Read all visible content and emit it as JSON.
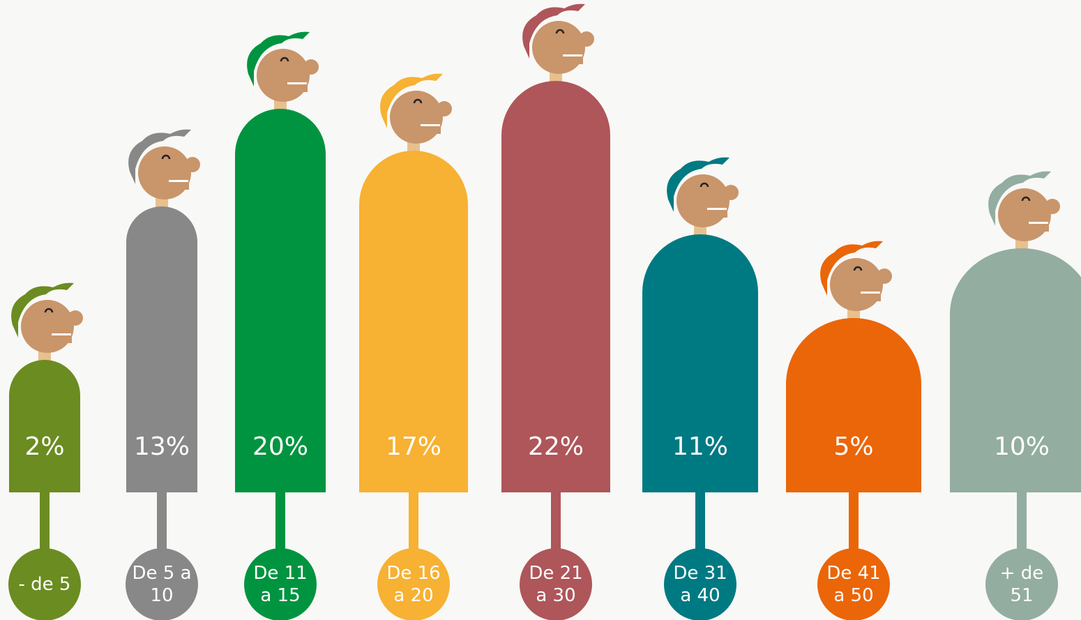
{
  "chart_data": {
    "type": "pictogram",
    "categories": [
      "- de 5",
      "De 5 a 10",
      "De 11 a 15",
      "De 16 a 20",
      "De 21 a 30",
      "De 31 a 40",
      "De 41 a 50",
      "+ de 51"
    ],
    "values": [
      2,
      13,
      20,
      17,
      22,
      11,
      5,
      10
    ],
    "value_labels": [
      "2%",
      "13%",
      "20%",
      "17%",
      "22%",
      "11%",
      "5%",
      "10%"
    ],
    "colors": [
      "#6b8c21",
      "#888888",
      "#009440",
      "#f7b133",
      "#ae565a",
      "#007a82",
      "#ea6608",
      "#93ada0"
    ]
  }
}
